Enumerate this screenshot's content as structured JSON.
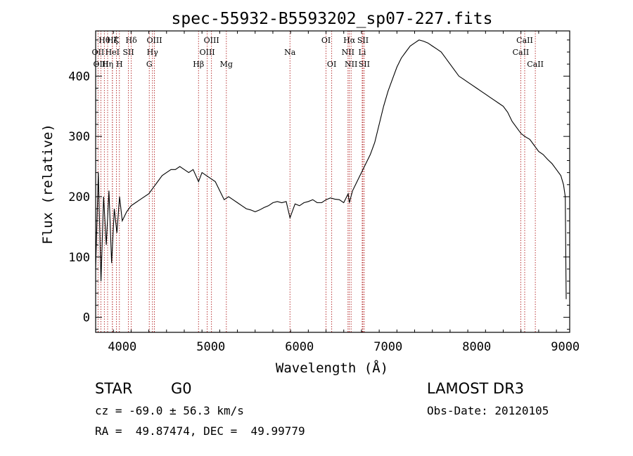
{
  "chart_data": {
    "type": "line",
    "title": "spec-55932-B5593202_sp07-227.fits",
    "xlabel": "Wavelength (Å)",
    "ylabel": "Flux (relative)",
    "xlim": [
      3700,
      9050
    ],
    "ylim": [
      -25,
      475
    ],
    "xticks": [
      4000,
      5000,
      6000,
      7000,
      8000,
      9000
    ],
    "xtick_labels": [
      "4000",
      "5000",
      "6000",
      "7000",
      "8000",
      "9000"
    ],
    "yticks": [
      0,
      100,
      200,
      300,
      400
    ],
    "ytick_labels": [
      "0",
      "100",
      "200",
      "300",
      "400"
    ],
    "grid": false,
    "series": [
      {
        "name": "flux",
        "x": [
          3700,
          3730,
          3760,
          3790,
          3820,
          3850,
          3880,
          3910,
          3940,
          3970,
          4000,
          4050,
          4100,
          4150,
          4200,
          4250,
          4300,
          4350,
          4400,
          4450,
          4500,
          4550,
          4600,
          4650,
          4700,
          4750,
          4800,
          4861,
          4900,
          4950,
          5000,
          5050,
          5100,
          5150,
          5200,
          5250,
          5300,
          5350,
          5400,
          5450,
          5500,
          5550,
          5600,
          5650,
          5700,
          5750,
          5800,
          5850,
          5893,
          5950,
          6000,
          6050,
          6100,
          6150,
          6200,
          6250,
          6300,
          6350,
          6400,
          6450,
          6500,
          6550,
          6563,
          6600,
          6650,
          6700,
          6750,
          6800,
          6850,
          6900,
          6950,
          7000,
          7050,
          7100,
          7150,
          7200,
          7250,
          7300,
          7350,
          7400,
          7450,
          7500,
          7550,
          7600,
          7650,
          7700,
          7750,
          7800,
          7850,
          7900,
          7950,
          8000,
          8050,
          8100,
          8150,
          8200,
          8250,
          8300,
          8350,
          8400,
          8450,
          8500,
          8542,
          8600,
          8650,
          8700,
          8750,
          8800,
          8850,
          8900,
          8950,
          8980,
          9000,
          9010
        ],
        "y": [
          80,
          240,
          60,
          200,
          120,
          210,
          90,
          180,
          140,
          200,
          160,
          175,
          185,
          190,
          195,
          200,
          205,
          215,
          225,
          235,
          240,
          245,
          245,
          250,
          245,
          240,
          245,
          225,
          240,
          235,
          230,
          225,
          210,
          195,
          200,
          195,
          190,
          185,
          180,
          178,
          175,
          178,
          182,
          185,
          190,
          192,
          190,
          192,
          165,
          188,
          185,
          190,
          192,
          195,
          190,
          190,
          195,
          198,
          196,
          195,
          190,
          205,
          190,
          210,
          225,
          240,
          255,
          270,
          290,
          320,
          350,
          375,
          395,
          415,
          430,
          440,
          450,
          455,
          460,
          458,
          455,
          450,
          445,
          440,
          430,
          420,
          410,
          400,
          395,
          390,
          385,
          380,
          375,
          370,
          365,
          360,
          355,
          350,
          340,
          325,
          315,
          305,
          300,
          295,
          285,
          275,
          270,
          262,
          255,
          245,
          235,
          220,
          200,
          30
        ]
      }
    ],
    "line_markers": [
      {
        "name": "Hθ",
        "x": 3798,
        "row": 1
      },
      {
        "name": "Hη",
        "x": 3835,
        "row": 3
      },
      {
        "name": "Hζ",
        "x": 3889,
        "row": 1
      },
      {
        "name": "K",
        "x": 3934,
        "row": 1
      },
      {
        "name": "H",
        "x": 3968,
        "row": 3
      },
      {
        "name": "Hδ",
        "x": 4102,
        "row": 1
      },
      {
        "name": "OII",
        "x": 3727,
        "row": 2
      },
      {
        "name": "OIII",
        "x": 3760,
        "row": 3
      },
      {
        "name": "HeI",
        "x": 3889,
        "row": 2
      },
      {
        "name": "SII",
        "x": 4070,
        "row": 2
      },
      {
        "name": "OIII",
        "x": 4363,
        "row": 1
      },
      {
        "name": "Hγ",
        "x": 4341,
        "row": 2
      },
      {
        "name": "G",
        "x": 4305,
        "row": 3
      },
      {
        "name": "Hβ",
        "x": 4861,
        "row": 3
      },
      {
        "name": "OIII",
        "x": 5007,
        "row": 1
      },
      {
        "name": "OIII",
        "x": 4959,
        "row": 2
      },
      {
        "name": "Mg",
        "x": 5175,
        "row": 3
      },
      {
        "name": "Na",
        "x": 5893,
        "row": 2
      },
      {
        "name": "OI",
        "x": 6300,
        "row": 1
      },
      {
        "name": "OI",
        "x": 6364,
        "row": 3
      },
      {
        "name": "Hα",
        "x": 6563,
        "row": 1
      },
      {
        "name": "NII",
        "x": 6548,
        "row": 2
      },
      {
        "name": "NII",
        "x": 6583,
        "row": 3
      },
      {
        "name": "SII",
        "x": 6716,
        "row": 1
      },
      {
        "name": "Li",
        "x": 6708,
        "row": 2
      },
      {
        "name": "SII",
        "x": 6731,
        "row": 3
      },
      {
        "name": "CaII",
        "x": 8542,
        "row": 1
      },
      {
        "name": "CaII",
        "x": 8498,
        "row": 2
      },
      {
        "name": "CaII",
        "x": 8662,
        "row": 3
      }
    ]
  },
  "info": {
    "class_label": "STAR",
    "subclass": "G0",
    "survey": "LAMOST DR3",
    "cz_line": "cz = -69.0 ± 56.3 km/s",
    "obs_date_line": "Obs-Date: 20120105",
    "radec_line": "RA =  49.87474, DEC =  49.99779"
  },
  "colors": {
    "spectrum": "#000000",
    "marker_line": "#b22222",
    "axes": "#000000",
    "background": "#ffffff"
  }
}
